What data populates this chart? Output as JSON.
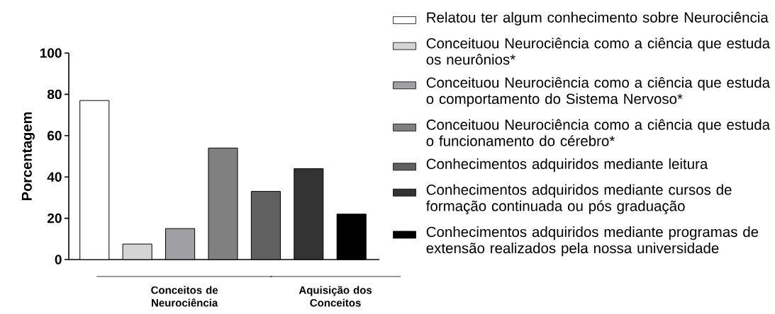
{
  "chart_data": {
    "type": "bar",
    "ylabel": "Porcentagem",
    "categories": [
      null,
      null,
      null,
      null,
      null,
      null,
      null
    ],
    "series": [
      {
        "name": "Relatou ter algum conhecimento sobre Neurociência",
        "color": "#ffffff",
        "values": [
          77,
          null,
          null,
          null,
          null,
          null,
          null
        ]
      },
      {
        "name": "Conceituou Neurociência como a ciência que estuda os neurônios*",
        "color": "#d4d4d4",
        "values": [
          null,
          7.5,
          null,
          null,
          null,
          null,
          null
        ]
      },
      {
        "name": "Conceituou Neurociência como a ciência que estuda o comportamento do Sistema Nervoso*",
        "color": "#a0a0a4",
        "values": [
          null,
          null,
          15,
          null,
          null,
          null,
          null
        ]
      },
      {
        "name": "Conceituou Neurociência como a ciência que estuda o funcionamento do cérebro*",
        "color": "#808080",
        "values": [
          null,
          null,
          null,
          54,
          null,
          null,
          null
        ]
      },
      {
        "name": "Conhecimentos adquiridos mediante leitura",
        "color": "#606060",
        "values": [
          null,
          null,
          null,
          null,
          33,
          null,
          null
        ]
      },
      {
        "name": "Conhecimentos adquiridos mediante cursos de formação continuada ou pós graduação",
        "color": "#333333",
        "values": [
          null,
          null,
          null,
          null,
          null,
          44,
          null
        ]
      },
      {
        "name": "Conhecimentos adquiridos mediante programas de extensão realizados pela nossa universidade",
        "color": "#000000",
        "values": [
          null,
          null,
          null,
          null,
          null,
          null,
          22
        ]
      }
    ],
    "ylim": [
      0,
      100
    ],
    "yticks": [
      0,
      20,
      40,
      60,
      80,
      100
    ],
    "annotations": [
      "Conceitos de Neurociência",
      "Aquisição dos Conceitos"
    ],
    "legend": "right",
    "grid": false
  }
}
